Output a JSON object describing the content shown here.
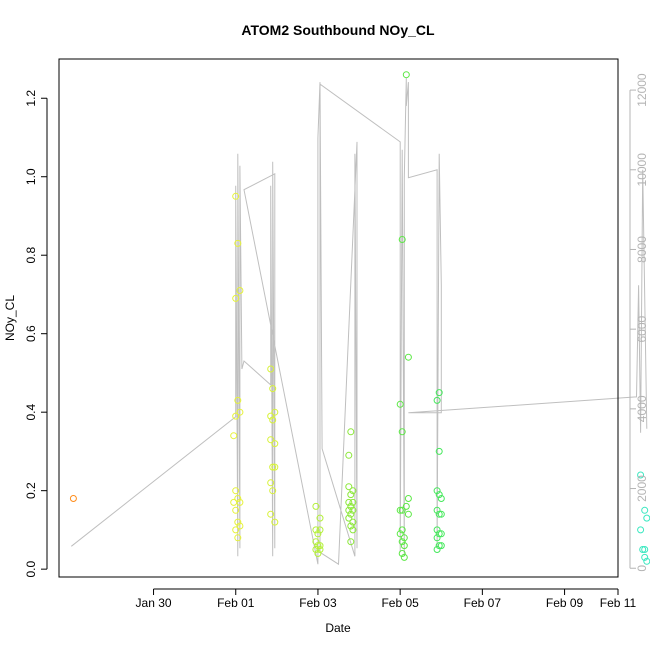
{
  "chart_data": {
    "type": "scatter",
    "title": "ATOM2 Southbound NOy_CL",
    "xlabel": "Date",
    "ylabel": "NOy_CL",
    "x_axis": {
      "unit": "days",
      "range": [
        -1.3,
        12.3
      ],
      "ticks": [
        {
          "value": 1,
          "label": "Jan 30"
        },
        {
          "value": 3,
          "label": "Feb 01"
        },
        {
          "value": 5,
          "label": "Feb 03"
        },
        {
          "value": 7,
          "label": "Feb 05"
        },
        {
          "value": 9,
          "label": "Feb 07"
        },
        {
          "value": 11,
          "label": "Feb 09"
        },
        {
          "value": 13,
          "label": "Feb 11"
        }
      ]
    },
    "y_axis": {
      "range": [
        -0.02,
        1.3
      ],
      "ticks": [
        {
          "value": 0.0,
          "label": "0.0"
        },
        {
          "value": 0.2,
          "label": "0.2"
        },
        {
          "value": 0.4,
          "label": "0.4"
        },
        {
          "value": 0.6,
          "label": "0.6"
        },
        {
          "value": 0.8,
          "label": "0.8"
        },
        {
          "value": 1.0,
          "label": "1.0"
        },
        {
          "value": 1.2,
          "label": "1.2"
        }
      ]
    },
    "y2_axis": {
      "range": [
        -220,
        12780
      ],
      "ticks": [
        {
          "value": 0,
          "label": "0"
        },
        {
          "value": 2000,
          "label": "2000"
        },
        {
          "value": 4000,
          "label": "4000"
        },
        {
          "value": 6000,
          "label": "6000"
        },
        {
          "value": 8000,
          "label": "8000"
        },
        {
          "value": 10000,
          "label": "10000"
        },
        {
          "value": 12000,
          "label": "12000"
        }
      ]
    },
    "grid": false,
    "series": [
      {
        "kind": "points",
        "axis": "left",
        "marker": "open-circle",
        "points": [
          {
            "x": -0.95,
            "y": 0.18,
            "color": "#ff8c1a"
          },
          {
            "x": 3.0,
            "y": 0.95,
            "color": "#e6f23a"
          },
          {
            "x": 3.05,
            "y": 0.83,
            "color": "#e6f23a"
          },
          {
            "x": 3.1,
            "y": 0.71,
            "color": "#e6f23a"
          },
          {
            "x": 3.0,
            "y": 0.69,
            "color": "#e6f23a"
          },
          {
            "x": 3.05,
            "y": 0.43,
            "color": "#e6f23a"
          },
          {
            "x": 3.0,
            "y": 0.39,
            "color": "#e6f23a"
          },
          {
            "x": 3.1,
            "y": 0.4,
            "color": "#e6f23a"
          },
          {
            "x": 2.95,
            "y": 0.34,
            "color": "#e6f23a"
          },
          {
            "x": 3.0,
            "y": 0.2,
            "color": "#e6f23a"
          },
          {
            "x": 3.05,
            "y": 0.18,
            "color": "#e6f23a"
          },
          {
            "x": 2.95,
            "y": 0.17,
            "color": "#e6f23a"
          },
          {
            "x": 3.1,
            "y": 0.17,
            "color": "#e6f23a"
          },
          {
            "x": 3.0,
            "y": 0.15,
            "color": "#e6f23a"
          },
          {
            "x": 3.05,
            "y": 0.12,
            "color": "#e6f23a"
          },
          {
            "x": 3.1,
            "y": 0.11,
            "color": "#e6f23a"
          },
          {
            "x": 3.0,
            "y": 0.1,
            "color": "#e6f23a"
          },
          {
            "x": 3.05,
            "y": 0.08,
            "color": "#e6f23a"
          },
          {
            "x": 3.85,
            "y": 0.51,
            "color": "#d8f23a"
          },
          {
            "x": 3.9,
            "y": 0.46,
            "color": "#d8f23a"
          },
          {
            "x": 3.85,
            "y": 0.39,
            "color": "#d8f23a"
          },
          {
            "x": 3.95,
            "y": 0.4,
            "color": "#d8f23a"
          },
          {
            "x": 3.9,
            "y": 0.38,
            "color": "#d8f23a"
          },
          {
            "x": 3.85,
            "y": 0.33,
            "color": "#d8f23a"
          },
          {
            "x": 3.95,
            "y": 0.32,
            "color": "#d8f23a"
          },
          {
            "x": 3.9,
            "y": 0.26,
            "color": "#d8f23a"
          },
          {
            "x": 3.95,
            "y": 0.26,
            "color": "#d8f23a"
          },
          {
            "x": 3.85,
            "y": 0.22,
            "color": "#d8f23a"
          },
          {
            "x": 3.9,
            "y": 0.2,
            "color": "#d8f23a"
          },
          {
            "x": 3.85,
            "y": 0.14,
            "color": "#d8f23a"
          },
          {
            "x": 3.95,
            "y": 0.12,
            "color": "#d8f23a"
          },
          {
            "x": 4.95,
            "y": 0.16,
            "color": "#b4f03a"
          },
          {
            "x": 5.05,
            "y": 0.13,
            "color": "#b4f03a"
          },
          {
            "x": 4.95,
            "y": 0.1,
            "color": "#b4f03a"
          },
          {
            "x": 5.0,
            "y": 0.09,
            "color": "#b4f03a"
          },
          {
            "x": 5.05,
            "y": 0.1,
            "color": "#b4f03a"
          },
          {
            "x": 4.95,
            "y": 0.07,
            "color": "#b4f03a"
          },
          {
            "x": 5.0,
            "y": 0.06,
            "color": "#b4f03a"
          },
          {
            "x": 5.05,
            "y": 0.06,
            "color": "#b4f03a"
          },
          {
            "x": 4.95,
            "y": 0.05,
            "color": "#b4f03a"
          },
          {
            "x": 5.0,
            "y": 0.04,
            "color": "#b4f03a"
          },
          {
            "x": 5.05,
            "y": 0.05,
            "color": "#b4f03a"
          },
          {
            "x": 5.8,
            "y": 0.35,
            "color": "#8ce83a"
          },
          {
            "x": 5.75,
            "y": 0.29,
            "color": "#8ce83a"
          },
          {
            "x": 5.75,
            "y": 0.21,
            "color": "#8ce83a"
          },
          {
            "x": 5.85,
            "y": 0.2,
            "color": "#8ce83a"
          },
          {
            "x": 5.8,
            "y": 0.19,
            "color": "#8ce83a"
          },
          {
            "x": 5.75,
            "y": 0.17,
            "color": "#8ce83a"
          },
          {
            "x": 5.85,
            "y": 0.17,
            "color": "#8ce83a"
          },
          {
            "x": 5.8,
            "y": 0.16,
            "color": "#8ce83a"
          },
          {
            "x": 5.75,
            "y": 0.15,
            "color": "#8ce83a"
          },
          {
            "x": 5.85,
            "y": 0.15,
            "color": "#8ce83a"
          },
          {
            "x": 5.8,
            "y": 0.14,
            "color": "#8ce83a"
          },
          {
            "x": 5.75,
            "y": 0.13,
            "color": "#8ce83a"
          },
          {
            "x": 5.85,
            "y": 0.12,
            "color": "#8ce83a"
          },
          {
            "x": 5.8,
            "y": 0.11,
            "color": "#8ce83a"
          },
          {
            "x": 5.85,
            "y": 0.1,
            "color": "#8ce83a"
          },
          {
            "x": 5.8,
            "y": 0.07,
            "color": "#8ce83a"
          },
          {
            "x": 7.15,
            "y": 1.26,
            "color": "#5ce845"
          },
          {
            "x": 7.05,
            "y": 0.84,
            "color": "#5ce845"
          },
          {
            "x": 7.2,
            "y": 0.54,
            "color": "#5ce845"
          },
          {
            "x": 7.0,
            "y": 0.42,
            "color": "#5ce845"
          },
          {
            "x": 7.05,
            "y": 0.35,
            "color": "#5ce845"
          },
          {
            "x": 7.2,
            "y": 0.18,
            "color": "#5ce845"
          },
          {
            "x": 7.15,
            "y": 0.16,
            "color": "#5ce845"
          },
          {
            "x": 7.0,
            "y": 0.15,
            "color": "#5ce845"
          },
          {
            "x": 7.05,
            "y": 0.15,
            "color": "#5ce845"
          },
          {
            "x": 7.2,
            "y": 0.14,
            "color": "#5ce845"
          },
          {
            "x": 7.05,
            "y": 0.1,
            "color": "#5ce845"
          },
          {
            "x": 7.0,
            "y": 0.09,
            "color": "#5ce845"
          },
          {
            "x": 7.1,
            "y": 0.08,
            "color": "#5ce845"
          },
          {
            "x": 7.05,
            "y": 0.07,
            "color": "#5ce845"
          },
          {
            "x": 7.1,
            "y": 0.06,
            "color": "#5ce845"
          },
          {
            "x": 7.05,
            "y": 0.04,
            "color": "#5ce845"
          },
          {
            "x": 7.1,
            "y": 0.03,
            "color": "#5ce845"
          },
          {
            "x": 7.95,
            "y": 0.45,
            "color": "#45e85c"
          },
          {
            "x": 7.9,
            "y": 0.43,
            "color": "#45e85c"
          },
          {
            "x": 7.95,
            "y": 0.3,
            "color": "#45e85c"
          },
          {
            "x": 7.9,
            "y": 0.2,
            "color": "#45e85c"
          },
          {
            "x": 7.95,
            "y": 0.19,
            "color": "#45e85c"
          },
          {
            "x": 8.0,
            "y": 0.18,
            "color": "#45e85c"
          },
          {
            "x": 7.9,
            "y": 0.15,
            "color": "#45e85c"
          },
          {
            "x": 7.95,
            "y": 0.14,
            "color": "#45e85c"
          },
          {
            "x": 8.0,
            "y": 0.14,
            "color": "#45e85c"
          },
          {
            "x": 7.9,
            "y": 0.1,
            "color": "#45e85c"
          },
          {
            "x": 7.95,
            "y": 0.09,
            "color": "#45e85c"
          },
          {
            "x": 8.0,
            "y": 0.09,
            "color": "#45e85c"
          },
          {
            "x": 7.9,
            "y": 0.08,
            "color": "#45e85c"
          },
          {
            "x": 7.95,
            "y": 0.06,
            "color": "#45e85c"
          },
          {
            "x": 8.0,
            "y": 0.06,
            "color": "#45e85c"
          },
          {
            "x": 7.9,
            "y": 0.05,
            "color": "#45e85c"
          },
          {
            "x": 12.85,
            "y": 0.24,
            "color": "#3ae8c0"
          },
          {
            "x": 12.95,
            "y": 0.15,
            "color": "#3ae8c0"
          },
          {
            "x": 13.0,
            "y": 0.13,
            "color": "#3ae8c0"
          },
          {
            "x": 12.85,
            "y": 0.1,
            "color": "#3ae8c0"
          },
          {
            "x": 12.9,
            "y": 0.05,
            "color": "#3ae8c0"
          },
          {
            "x": 12.95,
            "y": 0.05,
            "color": "#3ae8c0"
          },
          {
            "x": 12.95,
            "y": 0.03,
            "color": "#3ae8c0"
          },
          {
            "x": 13.0,
            "y": 0.02,
            "color": "#3ae8c0"
          }
        ]
      },
      {
        "kind": "line",
        "axis": "right",
        "color": "#bfbfbf",
        "points": [
          [
            -1.0,
            550
          ],
          [
            3.0,
            3800
          ],
          [
            3.0,
            9600
          ],
          [
            3.05,
            300
          ],
          [
            3.05,
            10400
          ],
          [
            3.1,
            500
          ],
          [
            3.1,
            10100
          ],
          [
            3.15,
            5000
          ],
          [
            3.2,
            5200
          ],
          [
            3.85,
            4600
          ],
          [
            3.85,
            9600
          ],
          [
            3.9,
            300
          ],
          [
            3.9,
            10200
          ],
          [
            3.95,
            500
          ],
          [
            3.95,
            9900
          ],
          [
            3.2,
            9500
          ],
          [
            5.0,
            100
          ],
          [
            5.0,
            10800
          ],
          [
            5.05,
            12200
          ],
          [
            5.1,
            3000
          ],
          [
            5.9,
            300
          ],
          [
            5.9,
            10400
          ],
          [
            5.95,
            500
          ],
          [
            5.95,
            10700
          ],
          [
            5.5,
            100
          ],
          [
            5.05,
            400
          ],
          [
            5.05,
            12150
          ],
          [
            7.0,
            10700
          ],
          [
            7.0,
            400
          ],
          [
            7.05,
            10500
          ],
          [
            7.1,
            300
          ],
          [
            7.1,
            9800
          ],
          [
            7.15,
            12300
          ],
          [
            7.15,
            11600
          ],
          [
            7.2,
            12200
          ],
          [
            7.2,
            9800
          ],
          [
            7.9,
            10000
          ],
          [
            7.9,
            500
          ],
          [
            7.95,
            10400
          ],
          [
            8.0,
            7100
          ],
          [
            8.0,
            3900
          ],
          [
            7.2,
            3900
          ],
          [
            12.75,
            4300
          ],
          [
            12.8,
            7100
          ],
          [
            12.85,
            3400
          ],
          [
            12.9,
            10000
          ],
          [
            13.0,
            3500
          ]
        ]
      }
    ]
  }
}
